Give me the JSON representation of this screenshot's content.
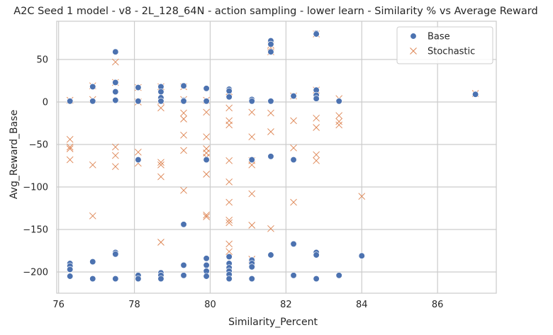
{
  "chart_data": {
    "type": "scatter",
    "title": "A2C Seed 1 model - v8 - 2L_128_64N - action sampling - lower learn - Similarity % vs Average Reward",
    "xlabel": "Similarity_Percent",
    "ylabel": "Avg_Reward_Base",
    "xlim": [
      75.95,
      87.55
    ],
    "ylim": [
      -225,
      95
    ],
    "xticks": [
      76,
      78,
      80,
      82,
      84,
      86
    ],
    "yticks": [
      50,
      0,
      -50,
      -100,
      -150,
      -200
    ],
    "grid": true,
    "legend_position": "top-right",
    "colors": {
      "base": "#4c72b0",
      "stochastic": "#dd8452"
    },
    "series": [
      {
        "name": "Base",
        "marker": "circle",
        "points": [
          [
            76.3,
            1
          ],
          [
            76.3,
            -190
          ],
          [
            76.3,
            -193
          ],
          [
            76.3,
            -197
          ],
          [
            76.3,
            -205
          ],
          [
            76.9,
            1
          ],
          [
            76.9,
            18
          ],
          [
            76.9,
            -188
          ],
          [
            76.9,
            -208
          ],
          [
            77.5,
            59
          ],
          [
            77.5,
            23
          ],
          [
            77.5,
            12
          ],
          [
            77.5,
            2
          ],
          [
            77.5,
            -177
          ],
          [
            77.5,
            -179
          ],
          [
            77.5,
            -208
          ],
          [
            78.1,
            17
          ],
          [
            78.1,
            1
          ],
          [
            78.1,
            -68
          ],
          [
            78.1,
            -204
          ],
          [
            78.1,
            -208
          ],
          [
            78.7,
            18
          ],
          [
            78.7,
            12
          ],
          [
            78.7,
            5
          ],
          [
            78.7,
            1
          ],
          [
            78.7,
            -201
          ],
          [
            78.7,
            -204
          ],
          [
            78.7,
            -208
          ],
          [
            79.3,
            19
          ],
          [
            79.3,
            2
          ],
          [
            79.3,
            1
          ],
          [
            79.3,
            -144
          ],
          [
            79.3,
            -192
          ],
          [
            79.3,
            -204
          ],
          [
            79.9,
            16
          ],
          [
            79.9,
            1
          ],
          [
            79.9,
            -68
          ],
          [
            79.9,
            -184
          ],
          [
            79.9,
            -192
          ],
          [
            79.9,
            -199
          ],
          [
            79.9,
            -205
          ],
          [
            80.5,
            15
          ],
          [
            80.5,
            13
          ],
          [
            80.5,
            6
          ],
          [
            80.5,
            -182
          ],
          [
            80.5,
            -190
          ],
          [
            80.5,
            -195
          ],
          [
            80.5,
            -199
          ],
          [
            80.5,
            -203
          ],
          [
            80.5,
            -208
          ],
          [
            81.1,
            3
          ],
          [
            81.1,
            1
          ],
          [
            81.1,
            -68
          ],
          [
            81.1,
            -186
          ],
          [
            81.1,
            -190
          ],
          [
            81.1,
            -194
          ],
          [
            81.1,
            -208
          ],
          [
            81.6,
            72
          ],
          [
            81.6,
            68
          ],
          [
            81.6,
            59
          ],
          [
            81.6,
            1
          ],
          [
            81.6,
            -64
          ],
          [
            81.6,
            -180
          ],
          [
            82.2,
            7
          ],
          [
            82.2,
            -68
          ],
          [
            82.2,
            -167
          ],
          [
            82.2,
            -204
          ],
          [
            82.8,
            81
          ],
          [
            82.8,
            80
          ],
          [
            82.8,
            14
          ],
          [
            82.8,
            8
          ],
          [
            82.8,
            4
          ],
          [
            82.8,
            -177
          ],
          [
            82.8,
            -180
          ],
          [
            82.8,
            -208
          ],
          [
            83.4,
            1
          ],
          [
            83.4,
            -204
          ],
          [
            84.0,
            -181
          ],
          [
            87.0,
            9
          ]
        ]
      },
      {
        "name": "Stochastic",
        "marker": "x",
        "points": [
          [
            76.3,
            2
          ],
          [
            76.3,
            -44
          ],
          [
            76.3,
            -53
          ],
          [
            76.3,
            -55
          ],
          [
            76.3,
            -68
          ],
          [
            76.9,
            19
          ],
          [
            76.9,
            3
          ],
          [
            76.9,
            -74
          ],
          [
            76.9,
            -134
          ],
          [
            77.5,
            47
          ],
          [
            77.5,
            23
          ],
          [
            77.5,
            -53
          ],
          [
            77.5,
            -63
          ],
          [
            77.5,
            -76
          ],
          [
            78.1,
            17
          ],
          [
            78.1,
            0
          ],
          [
            78.1,
            -59
          ],
          [
            78.1,
            -72
          ],
          [
            78.7,
            18
          ],
          [
            78.7,
            1
          ],
          [
            78.7,
            -7
          ],
          [
            78.7,
            -71
          ],
          [
            78.7,
            -74
          ],
          [
            78.7,
            -88
          ],
          [
            78.7,
            -165
          ],
          [
            79.3,
            18
          ],
          [
            79.3,
            3
          ],
          [
            79.3,
            -13
          ],
          [
            79.3,
            -20
          ],
          [
            79.3,
            -39
          ],
          [
            79.3,
            -57
          ],
          [
            79.3,
            -104
          ],
          [
            79.9,
            2
          ],
          [
            79.9,
            -12
          ],
          [
            79.9,
            -41
          ],
          [
            79.9,
            -55
          ],
          [
            79.9,
            -60
          ],
          [
            79.9,
            -65
          ],
          [
            79.9,
            -85
          ],
          [
            79.9,
            -133
          ],
          [
            79.9,
            -135
          ],
          [
            80.5,
            12
          ],
          [
            80.5,
            -7
          ],
          [
            80.5,
            -22
          ],
          [
            80.5,
            -27
          ],
          [
            80.5,
            -69
          ],
          [
            80.5,
            -94
          ],
          [
            80.5,
            -118
          ],
          [
            80.5,
            -139
          ],
          [
            80.5,
            -142
          ],
          [
            80.5,
            -167
          ],
          [
            80.5,
            -176
          ],
          [
            81.1,
            -12
          ],
          [
            81.1,
            -41
          ],
          [
            81.1,
            -69
          ],
          [
            81.1,
            -74
          ],
          [
            81.1,
            -108
          ],
          [
            81.1,
            -145
          ],
          [
            81.1,
            -185
          ],
          [
            81.6,
            67
          ],
          [
            81.6,
            64
          ],
          [
            81.6,
            59
          ],
          [
            81.6,
            -13
          ],
          [
            81.6,
            -35
          ],
          [
            81.6,
            -149
          ],
          [
            82.2,
            7
          ],
          [
            82.2,
            -22
          ],
          [
            82.2,
            -54
          ],
          [
            82.2,
            -118
          ],
          [
            82.8,
            80
          ],
          [
            82.8,
            14
          ],
          [
            82.8,
            -19
          ],
          [
            82.8,
            -30
          ],
          [
            82.8,
            -62
          ],
          [
            82.8,
            -69
          ],
          [
            83.4,
            4
          ],
          [
            83.4,
            -16
          ],
          [
            83.4,
            -23
          ],
          [
            83.4,
            -27
          ],
          [
            84.0,
            -111
          ],
          [
            87.0,
            10
          ]
        ]
      }
    ]
  }
}
